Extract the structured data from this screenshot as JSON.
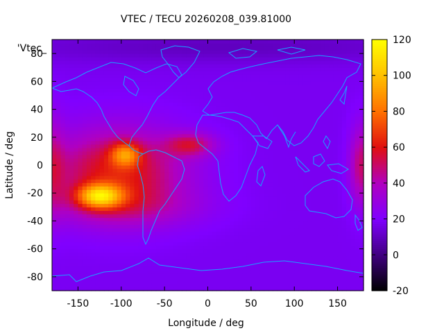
{
  "chart_data": {
    "type": "heatmap",
    "title": "VTEC / TECU 20260208_039.81000",
    "xlabel": "Longitude / deg",
    "ylabel": "Latitude / deg",
    "legend_label": "'Vtec_",
    "xlim": [
      -180,
      180
    ],
    "ylim": [
      -90,
      90
    ],
    "xticks": [
      -150,
      -100,
      -50,
      0,
      50,
      100,
      150
    ],
    "yticks": [
      -80,
      -60,
      -40,
      -20,
      0,
      20,
      40,
      60,
      80
    ],
    "colorbar": {
      "min": -20,
      "max": 120,
      "ticks": [
        -20,
        0,
        20,
        40,
        60,
        80,
        100,
        120
      ]
    },
    "grid": false,
    "colormap": [
      "#000000",
      "#400080",
      "#8000ff",
      "#b000c0",
      "#e01010",
      "#ff7000",
      "#ffc000",
      "#ffff00"
    ],
    "background_level": 18,
    "features": [
      {
        "name": "pacific-anomaly",
        "lon": -105,
        "lat": -5,
        "sigma_lon": 55,
        "sigma_lat": 22,
        "amp": 44
      },
      {
        "name": "peak-south",
        "lon": -125,
        "lat": -22,
        "sigma_lon": 18,
        "sigma_lat": 6,
        "amp": 62
      },
      {
        "name": "peak-equator",
        "lon": -95,
        "lat": 8,
        "sigma_lon": 12,
        "sigma_lat": 6,
        "amp": 40
      },
      {
        "name": "atlantic-tongue",
        "lon": -20,
        "lat": 15,
        "sigma_lon": 20,
        "sigma_lat": 6,
        "amp": 30
      },
      {
        "name": "east-edge-patch",
        "lon": 178,
        "lat": 0,
        "sigma_lon": 10,
        "sigma_lat": 20,
        "amp": 32
      },
      {
        "name": "west-edge-patch",
        "lon": -180,
        "lat": 0,
        "sigma_lon": 10,
        "sigma_lat": 25,
        "amp": 20
      },
      {
        "name": "south-amplification",
        "lon": -90,
        "lat": -30,
        "sigma_lon": 60,
        "sigma_lat": 10,
        "amp": 14
      },
      {
        "name": "arctic-low",
        "lon": 20,
        "lat": 85,
        "sigma_lon": 180,
        "sigma_lat": 8,
        "amp": -8
      }
    ]
  }
}
